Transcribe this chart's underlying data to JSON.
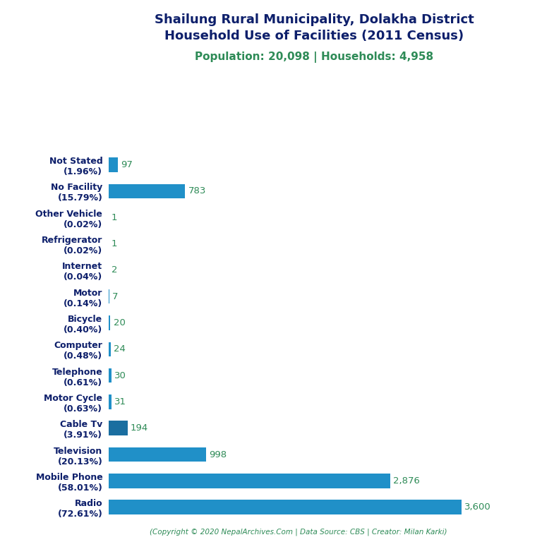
{
  "title_line1": "Shailung Rural Municipality, Dolakha District",
  "title_line2": "Household Use of Facilities (2011 Census)",
  "subtitle": "Population: 20,098 | Households: 4,958",
  "copyright": "(Copyright © 2020 NepalArchives.Com | Data Source: CBS | Creator: Milan Karki)",
  "categories": [
    "Radio\n(72.61%)",
    "Mobile Phone\n(58.01%)",
    "Television\n(20.13%)",
    "Cable Tv\n(3.91%)",
    "Motor Cycle\n(0.63%)",
    "Telephone\n(0.61%)",
    "Computer\n(0.48%)",
    "Bicycle\n(0.40%)",
    "Motor\n(0.14%)",
    "Internet\n(0.04%)",
    "Refrigerator\n(0.02%)",
    "Other Vehicle\n(0.02%)",
    "No Facility\n(15.79%)",
    "Not Stated\n(1.96%)"
  ],
  "values": [
    3600,
    2876,
    998,
    194,
    31,
    30,
    24,
    20,
    7,
    2,
    1,
    1,
    783,
    97
  ],
  "bar_color_main": "#2090c8",
  "bar_color_cable": "#1a6ea0",
  "value_color": "#2e8b57",
  "title_color": "#0d1f6b",
  "subtitle_color": "#2e8b57",
  "copyright_color": "#2e8b57",
  "background_color": "#ffffff",
  "xlim": [
    0,
    4200
  ]
}
